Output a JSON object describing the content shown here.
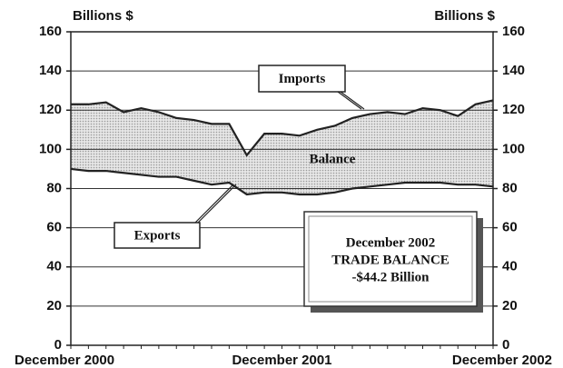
{
  "chart_data": {
    "type": "line",
    "y_label": "Billions $",
    "y2_label": "Billions $",
    "categories": [
      "December 2000",
      null,
      null,
      null,
      null,
      null,
      null,
      null,
      null,
      null,
      null,
      null,
      "December 2001",
      null,
      null,
      null,
      null,
      null,
      null,
      null,
      null,
      null,
      null,
      null,
      "December 2002"
    ],
    "series": [
      {
        "name": "Imports",
        "color": "#222222",
        "values": [
          123,
          123,
          124,
          119,
          121,
          119,
          116,
          115,
          113,
          113,
          97,
          108,
          108,
          107,
          110,
          112,
          116,
          118,
          119,
          118,
          121,
          120,
          117,
          123,
          125
        ]
      },
      {
        "name": "Exports",
        "color": "#222222",
        "values": [
          90,
          89,
          89,
          88,
          87,
          86,
          86,
          84,
          82,
          83,
          77,
          78,
          78,
          77,
          77,
          78,
          80,
          81,
          82,
          83,
          83,
          83,
          82,
          82,
          81
        ]
      }
    ],
    "area_label": "Balance",
    "area_color": "#d4d4d4",
    "annotation": [
      "December 2002",
      "TRADE BALANCE",
      "-$44.2 Billion"
    ],
    "ylim": [
      0,
      160
    ],
    "yticks": [
      0,
      20,
      40,
      60,
      80,
      100,
      120,
      140,
      160
    ],
    "y2lim": [
      0,
      160
    ],
    "y2ticks": [
      0,
      20,
      40,
      60,
      80,
      100,
      120,
      140,
      160
    ],
    "grid": true
  }
}
